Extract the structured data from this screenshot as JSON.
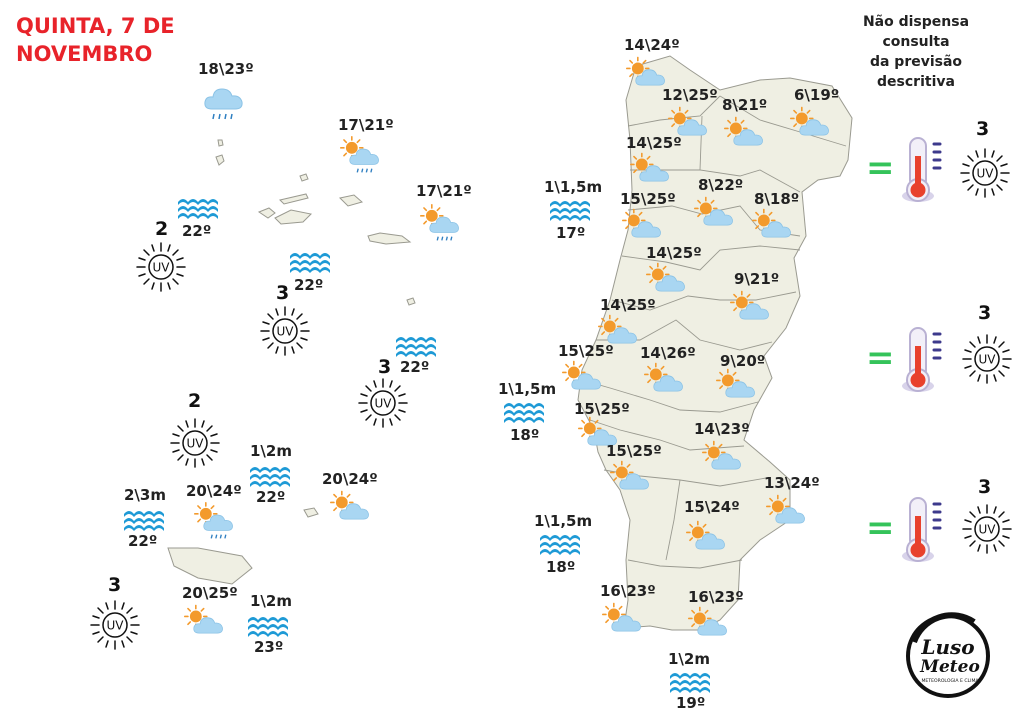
{
  "header": {
    "title_line1": "QUINTA, 7 DE",
    "title_line2": "NOVEMBRO",
    "disclaimer_line1": "Não dispensa consulta",
    "disclaimer_line2": "da previsão descritiva"
  },
  "colors": {
    "title": "#e8232a",
    "land": "#efefe3",
    "sea_icon": "#1e9ad6",
    "cloud": "#a9d6f2",
    "sun": "#f39a2c",
    "equals": "#35c35a"
  },
  "azores": {
    "cities": [
      {
        "temp": "18\\23º",
        "icon": "rain-cloud-icon"
      },
      {
        "temp": "17\\21º",
        "icon": "sun-cloud-rain-icon"
      },
      {
        "temp": "17\\21º",
        "icon": "sun-cloud-rain-icon"
      }
    ],
    "sea": [
      {
        "wave": "",
        "water": "22º"
      },
      {
        "wave": "",
        "water": "22º"
      },
      {
        "wave": "",
        "water": "22º"
      }
    ],
    "uv": [
      "2",
      "3",
      "3"
    ]
  },
  "madeira": {
    "cities": [
      {
        "temp": "20\\24º",
        "icon": "sun-cloud-rain-icon"
      },
      {
        "temp": "20\\24º",
        "icon": "sun-cloud-icon"
      },
      {
        "temp": "20\\25º",
        "icon": "sun-cloud-icon"
      }
    ],
    "sea": [
      {
        "wave": "1\\2m",
        "water": "22º"
      },
      {
        "wave": "2\\3m",
        "water": "22º"
      },
      {
        "wave": "1\\2m",
        "water": "23º"
      }
    ],
    "uv": [
      "2",
      "3"
    ]
  },
  "mainland": {
    "cities": [
      {
        "temp": "14\\24º"
      },
      {
        "temp": "12\\25º"
      },
      {
        "temp": "8\\21º"
      },
      {
        "temp": "6\\19º"
      },
      {
        "temp": "14\\25º"
      },
      {
        "temp": "15\\25º"
      },
      {
        "temp": "8\\22º"
      },
      {
        "temp": "8\\18º"
      },
      {
        "temp": "14\\25º"
      },
      {
        "temp": "9\\21º"
      },
      {
        "temp": "14\\25º"
      },
      {
        "temp": "15\\25º"
      },
      {
        "temp": "14\\26º"
      },
      {
        "temp": "9\\20º"
      },
      {
        "temp": "15\\25º"
      },
      {
        "temp": "14\\23º"
      },
      {
        "temp": "15\\25º"
      },
      {
        "temp": "13\\24º"
      },
      {
        "temp": "15\\24º"
      },
      {
        "temp": "16\\23º"
      },
      {
        "temp": "16\\23º"
      }
    ],
    "sea": [
      {
        "wave": "1\\1,5m",
        "water": "17º"
      },
      {
        "wave": "1\\1,5m",
        "water": "18º"
      },
      {
        "wave": "1\\1,5m",
        "water": "18º"
      },
      {
        "wave": "1\\2m",
        "water": "19º"
      }
    ],
    "uv_panel": [
      {
        "uv": "3",
        "symbol": "=",
        "icon": "thermometer-icon"
      },
      {
        "uv": "3",
        "symbol": "=",
        "icon": "thermometer-icon"
      },
      {
        "uv": "3",
        "symbol": "=",
        "icon": "thermometer-icon"
      }
    ]
  },
  "logo": {
    "line1": "Luso",
    "line2": "Meteo",
    "tagline": "METEOROLOGIA E CLIMA"
  }
}
